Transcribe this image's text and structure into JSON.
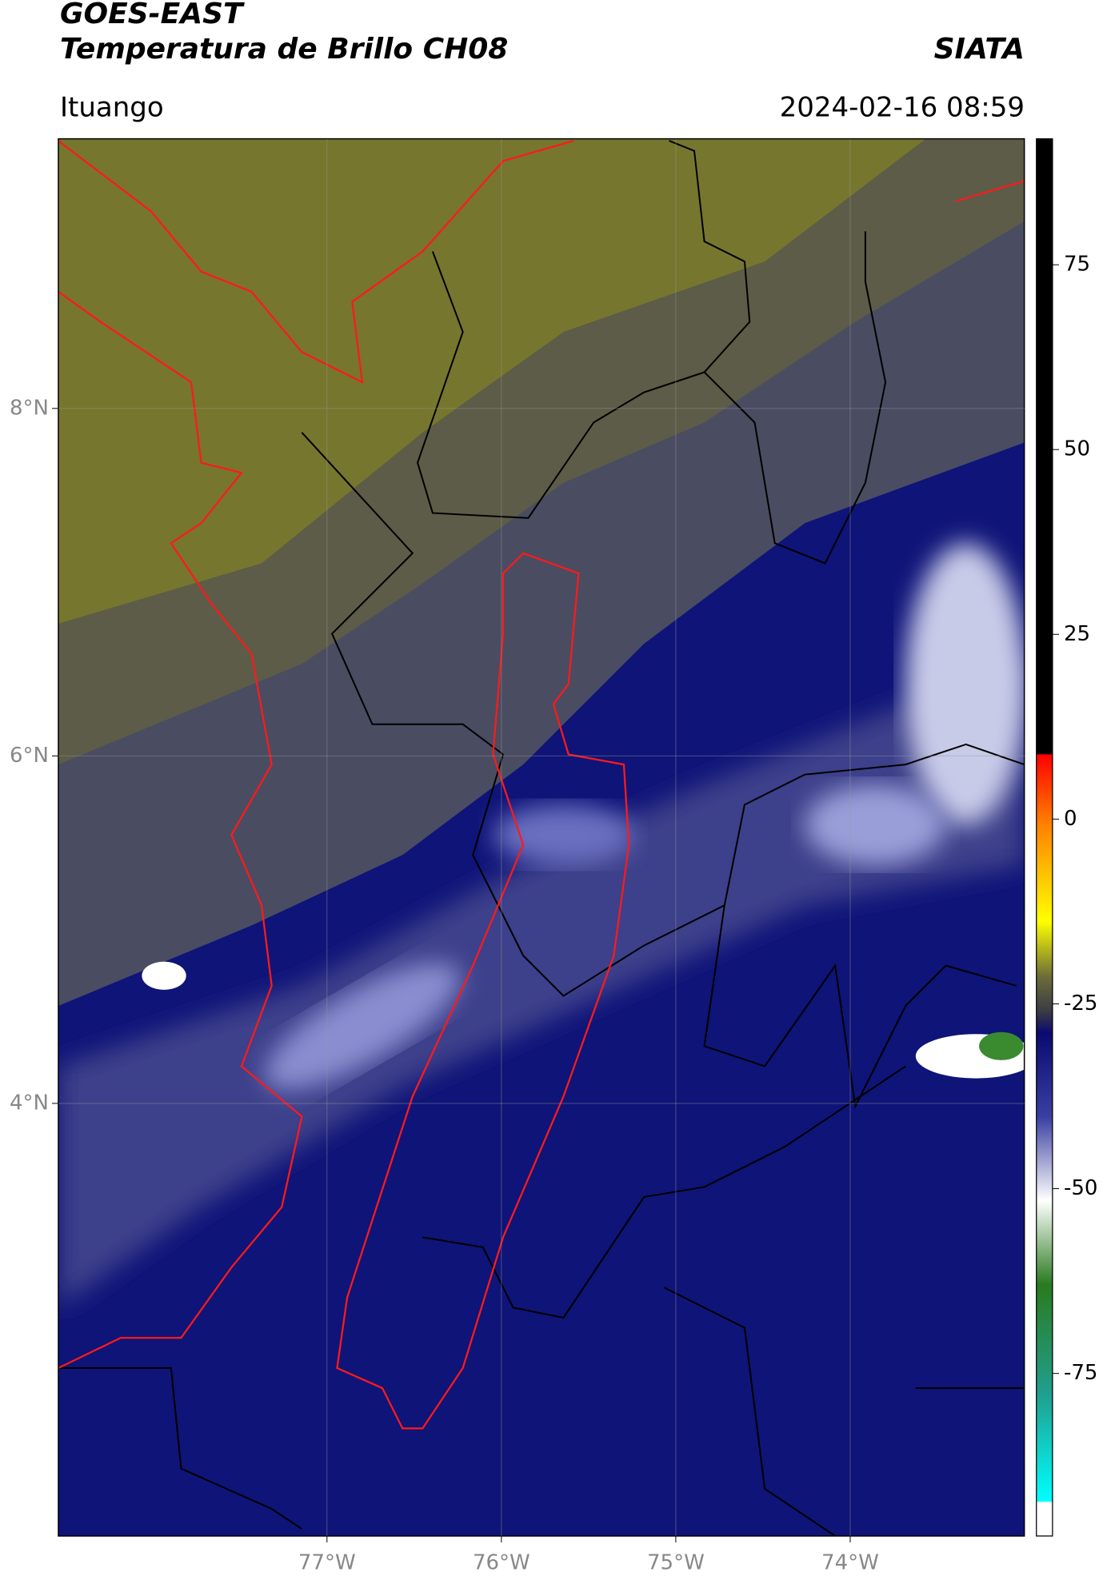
{
  "header": {
    "title": "GOES-EAST",
    "subtitle": "Temperatura de Brillo CH08",
    "source": "SIATA",
    "region": "Ituango",
    "datetime": "2024-02-16 08:59"
  },
  "map": {
    "xlim": [
      -78.54,
      -73.0
    ],
    "ylim": [
      1.51,
      9.55
    ],
    "xticks": [
      {
        "value": -77,
        "label": "77°W"
      },
      {
        "value": -76,
        "label": "76°W"
      },
      {
        "value": -75,
        "label": "75°W"
      },
      {
        "value": -74,
        "label": "74°W"
      }
    ],
    "yticks": [
      {
        "value": 8,
        "label": "8°N"
      },
      {
        "value": 6,
        "label": "6°N"
      },
      {
        "value": 4,
        "label": "4°N"
      }
    ],
    "grid": true
  },
  "colorbar": {
    "lim": [
      -97,
      92
    ],
    "ticks": [
      75,
      50,
      25,
      0,
      -25,
      -50,
      -75
    ]
  }
}
